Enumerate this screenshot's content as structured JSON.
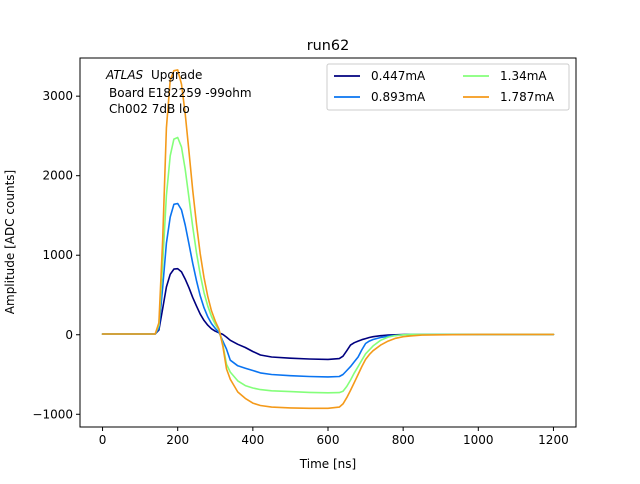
{
  "chart_data": {
    "type": "line",
    "title": "run62",
    "xlabel": "Time [ns]",
    "ylabel": "Amplitude [ADC counts]",
    "xlim": [
      -60,
      1260
    ],
    "ylim": [
      -1160,
      3480
    ],
    "xticks": [
      0,
      200,
      400,
      600,
      800,
      1000,
      1200
    ],
    "yticks": [
      -1000,
      0,
      1000,
      2000,
      3000
    ],
    "xtick_labels": [
      "0",
      "200",
      "400",
      "600",
      "800",
      "1000",
      "1200"
    ],
    "ytick_labels": [
      "−1000",
      "0",
      "1000",
      "2000",
      "3000"
    ],
    "grid": false,
    "legend_position": "top-right",
    "legend_columns": 2,
    "annotation": {
      "atlas": "ATLAS",
      "upgrade": "Upgrade",
      "line2": "Board E182259 -99ohm",
      "line3": "Ch002 7dB lo"
    },
    "x": [
      0,
      140,
      150,
      160,
      170,
      180,
      190,
      200,
      210,
      220,
      230,
      240,
      250,
      260,
      270,
      280,
      290,
      300,
      310,
      320,
      330,
      340,
      360,
      380,
      400,
      420,
      450,
      500,
      550,
      600,
      630,
      640,
      650,
      660,
      670,
      680,
      690,
      700,
      710,
      720,
      740,
      760,
      780,
      800,
      820,
      850,
      900,
      1000,
      1100,
      1200
    ],
    "series": [
      {
        "name": "0.447mA",
        "color": "#00007f",
        "values": [
          10,
          10,
          60,
          330,
          600,
          760,
          825,
          830,
          790,
          700,
          590,
          470,
          360,
          260,
          180,
          120,
          75,
          45,
          25,
          5,
          -30,
          -70,
          -120,
          -160,
          -210,
          -255,
          -280,
          -295,
          -305,
          -310,
          -300,
          -270,
          -200,
          -130,
          -100,
          -80,
          -62,
          -48,
          -35,
          -25,
          -12,
          -5,
          0,
          2,
          5,
          5,
          5,
          5,
          5,
          5
        ]
      },
      {
        "name": "0.893mA",
        "color": "#0a74f1",
        "values": [
          10,
          10,
          80,
          600,
          1150,
          1480,
          1640,
          1650,
          1570,
          1380,
          1140,
          900,
          680,
          490,
          340,
          225,
          140,
          80,
          30,
          -80,
          -180,
          -320,
          -390,
          -420,
          -450,
          -480,
          -500,
          -515,
          -525,
          -530,
          -525,
          -500,
          -450,
          -400,
          -340,
          -280,
          -190,
          -110,
          -80,
          -60,
          -35,
          -18,
          -8,
          0,
          5,
          5,
          5,
          5,
          5,
          5
        ]
      },
      {
        "name": "1.34mA",
        "color": "#84ff7a",
        "values": [
          10,
          10,
          120,
          900,
          1750,
          2250,
          2460,
          2480,
          2360,
          2080,
          1720,
          1360,
          1030,
          760,
          530,
          360,
          230,
          130,
          60,
          -120,
          -370,
          -470,
          -580,
          -640,
          -670,
          -690,
          -705,
          -715,
          -725,
          -730,
          -728,
          -710,
          -650,
          -570,
          -480,
          -400,
          -320,
          -240,
          -190,
          -140,
          -70,
          -30,
          -10,
          0,
          5,
          5,
          5,
          5,
          5,
          5
        ]
      },
      {
        "name": "1.787mA",
        "color": "#f49a1a",
        "values": [
          10,
          10,
          150,
          1200,
          2600,
          3200,
          3320,
          3330,
          3150,
          2780,
          2300,
          1820,
          1390,
          1020,
          720,
          480,
          300,
          170,
          70,
          -140,
          -430,
          -560,
          -720,
          -800,
          -860,
          -890,
          -910,
          -920,
          -925,
          -925,
          -910,
          -870,
          -790,
          -700,
          -600,
          -500,
          -400,
          -310,
          -250,
          -200,
          -130,
          -80,
          -45,
          -25,
          -15,
          -5,
          0,
          5,
          5,
          5
        ]
      }
    ]
  }
}
